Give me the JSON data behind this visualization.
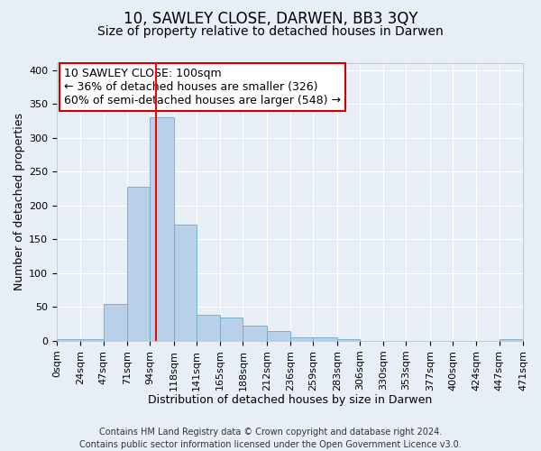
{
  "title": "10, SAWLEY CLOSE, DARWEN, BB3 3QY",
  "subtitle": "Size of property relative to detached houses in Darwen",
  "xlabel": "Distribution of detached houses by size in Darwen",
  "ylabel": "Number of detached properties",
  "bin_edges": [
    0,
    24,
    47,
    71,
    94,
    118,
    141,
    165,
    188,
    212,
    236,
    259,
    283,
    306,
    330,
    353,
    377,
    400,
    424,
    447,
    471
  ],
  "bar_heights": [
    2,
    2,
    55,
    228,
    330,
    172,
    39,
    35,
    23,
    14,
    5,
    5,
    2,
    0,
    0,
    0,
    0,
    0,
    0,
    2
  ],
  "bar_color": "#b8d0e8",
  "bar_edge_color": "#6fa8d0",
  "vertical_line_x": 100,
  "vertical_line_color": "red",
  "annotation_title": "10 SAWLEY CLOSE: 100sqm",
  "annotation_line1": "← 36% of detached houses are smaller (326)",
  "annotation_line2": "60% of semi-detached houses are larger (548) →",
  "annotation_box_color": "white",
  "annotation_box_edge_color": "#cc0000",
  "ylim": [
    0,
    410
  ],
  "yticks": [
    0,
    50,
    100,
    150,
    200,
    250,
    300,
    350,
    400
  ],
  "tick_labels": [
    "0sqm",
    "24sqm",
    "47sqm",
    "71sqm",
    "94sqm",
    "118sqm",
    "141sqm",
    "165sqm",
    "188sqm",
    "212sqm",
    "236sqm",
    "259sqm",
    "283sqm",
    "306sqm",
    "330sqm",
    "353sqm",
    "377sqm",
    "400sqm",
    "424sqm",
    "447sqm",
    "471sqm"
  ],
  "footer_line1": "Contains HM Land Registry data © Crown copyright and database right 2024.",
  "footer_line2": "Contains public sector information licensed under the Open Government Licence v3.0.",
  "background_color": "#e8eef5",
  "grid_color": "white",
  "title_fontsize": 12,
  "subtitle_fontsize": 10,
  "axis_label_fontsize": 9,
  "tick_fontsize": 8,
  "footer_fontsize": 7,
  "annotation_fontsize": 9
}
